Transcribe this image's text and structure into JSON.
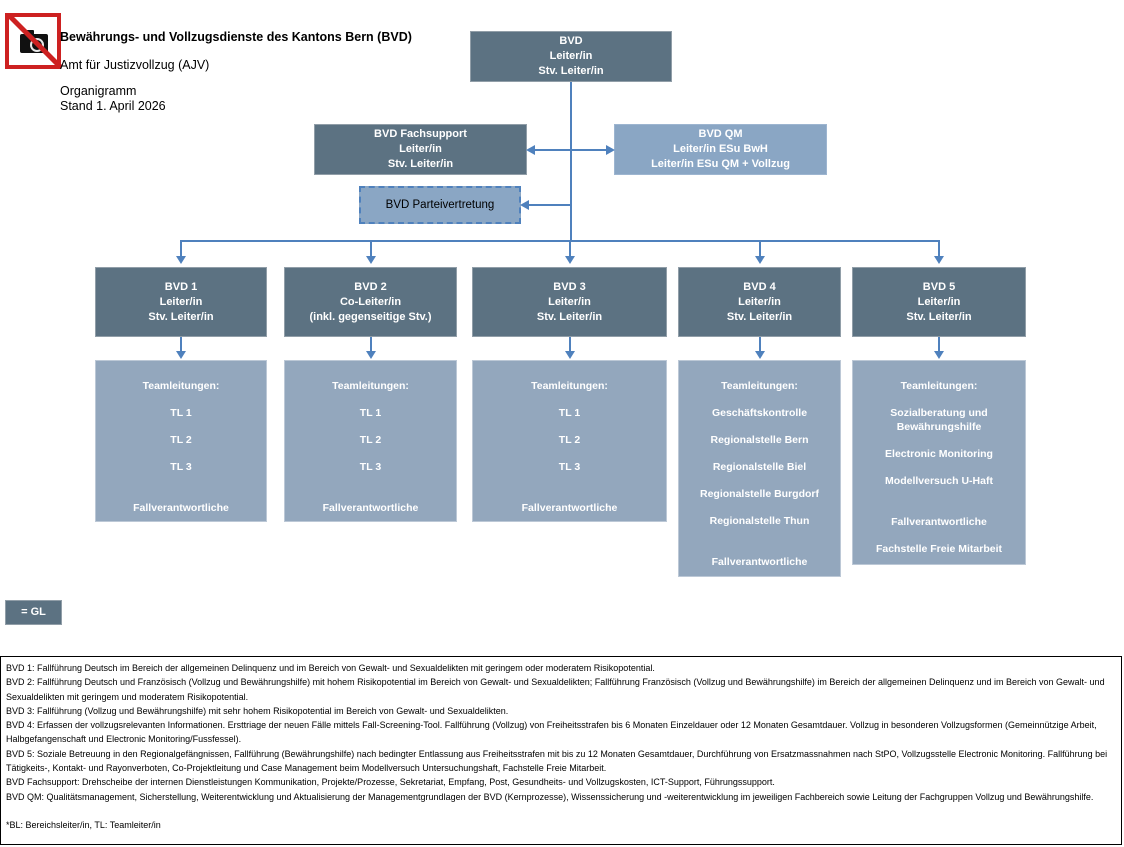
{
  "header": {
    "title": "Bewährungs- und Vollzugsdienste des Kantons Bern (BVD)",
    "org_unit": "Amt für Justizvollzug (AJV)",
    "doc_label": "Organigramm",
    "version_label": "Stand 1. April 2026",
    "missing_image_icon": "broken-image-placeholder"
  },
  "colors": {
    "box_dark": "#5c7282",
    "box_light": "#93a7bd",
    "box_medium": "#8aa6c4",
    "connector_blue": "#4f81bd",
    "alert_red": "#cd2121"
  },
  "org": {
    "root": [
      "BVD",
      "Leiter/in",
      "Stv. Leiter/in"
    ],
    "fachsupport": [
      "BVD Fachsupport",
      "Leiter/in",
      "Stv. Leiter/in"
    ],
    "qm": [
      "BVD QM",
      "Leiter/in ESu BwH",
      "Leiter/in ESu QM + Vollzug"
    ],
    "parteivertretung": "BVD Parteivertretung",
    "units": [
      {
        "name": "BVD 1",
        "header": [
          "BVD 1",
          "Leiter/in",
          "Stv. Leiter/in"
        ],
        "team": [
          "Teamleitungen:",
          "TL 1",
          "TL 2",
          "TL 3",
          "",
          "Fallverantwortliche"
        ]
      },
      {
        "name": "BVD 2",
        "header": [
          "BVD 2",
          "Co-Leiter/in",
          "(inkl. gegenseitige Stv.)"
        ],
        "team": [
          "Teamleitungen:",
          "TL 1",
          "TL 2",
          "TL 3",
          "",
          "Fallverantwortliche"
        ]
      },
      {
        "name": "BVD 3",
        "header": [
          "BVD 3",
          "Leiter/in",
          "Stv. Leiter/in"
        ],
        "team": [
          "Teamleitungen:",
          "TL 1",
          "TL 2",
          "TL 3",
          "",
          "Fallverantwortliche"
        ]
      },
      {
        "name": "BVD 4",
        "header": [
          "BVD 4",
          "Leiter/in",
          "Stv. Leiter/in"
        ],
        "team": [
          "Teamleitungen:",
          "Geschäftskontrolle",
          "Regionalstelle Bern",
          "Regionalstelle Biel",
          "Regionalstelle Burgdorf",
          "Regionalstelle Thun",
          "",
          "Fallverantwortliche"
        ]
      },
      {
        "name": "BVD 5",
        "header": [
          "BVD 5",
          "Leiter/in",
          "Stv. Leiter/in"
        ],
        "team": [
          "Teamleitungen:",
          "Sozialberatung und Bewährungshilfe",
          "Electronic Monitoring",
          "Modellversuch U-Haft",
          "",
          "Fallverantwortliche",
          "Fachstelle Freie Mitarbeit"
        ]
      }
    ]
  },
  "legend": {
    "label": "= GL"
  },
  "footnotes": [
    "BVD 1: Fallführung Deutsch im Bereich der allgemeinen Delinquenz und im Bereich von Gewalt- und Sexualdelikten mit geringem oder moderatem Risikopotential.",
    "BVD 2: Fallführung Deutsch und Französisch (Vollzug und Bewährungshilfe) mit hohem Risikopotential im Bereich von Gewalt- und Sexualdelikten; Fallführung Französisch (Vollzug und Bewährungshilfe) im Bereich der allgemeinen Delinquenz und im Bereich von Gewalt- und Sexualdelikten mit geringem und moderatem Risikopotential.",
    "BVD 3:  Fallführung (Vollzug und Bewährungshilfe) mit sehr hohem Risikopotential im Bereich von Gewalt- und Sexualdelikten.",
    "BVD 4: Erfassen der vollzugsrelevanten Informationen. Ersttriage der neuen Fälle mittels Fall-Screening-Tool. Fallführung (Vollzug) von Freiheitsstrafen bis 6 Monaten Einzeldauer oder 12 Monaten Gesamtdauer. Vollzug in besonderen Vollzugsformen (Gemeinnützige Arbeit, Halbgefangenschaft und Electronic Monitoring/Fussfessel).",
    "BVD 5: Soziale Betreuung in den Regionalgefängnissen, Fallführung (Bewährungshilfe) nach bedingter Entlassung aus Freiheitsstrafen mit bis zu 12 Monaten Gesamtdauer, Durchführung von Ersatzmassnahmen nach StPO, Vollzugsstelle Electronic Monitoring. Fallführung bei Tätigkeits-, Kontakt- und Rayonverboten, Co-Projektleitung und Case Management beim Modellversuch Untersuchungshaft, Fachstelle Freie Mitarbeit.",
    "BVD Fachsupport: Drehscheibe der internen Dienstleistungen Kommunikation, Projekte/Prozesse, Sekretariat, Empfang, Post, Gesundheits- und Vollzugskosten, ICT-Support, Führungssupport.",
    "BVD QM: Qualitätsmanagement, Sicherstellung, Weiterentwicklung und Aktualisierung der Managementgrundlagen der BVD (Kernprozesse), Wissenssicherung und -weiterentwicklung im jeweiligen Fachbereich sowie Leitung der Fachgruppen Vollzug und Bewährungshilfe."
  ],
  "abbrev_note": "*BL: Bereichsleiter/in, TL: Teamleiter/in"
}
